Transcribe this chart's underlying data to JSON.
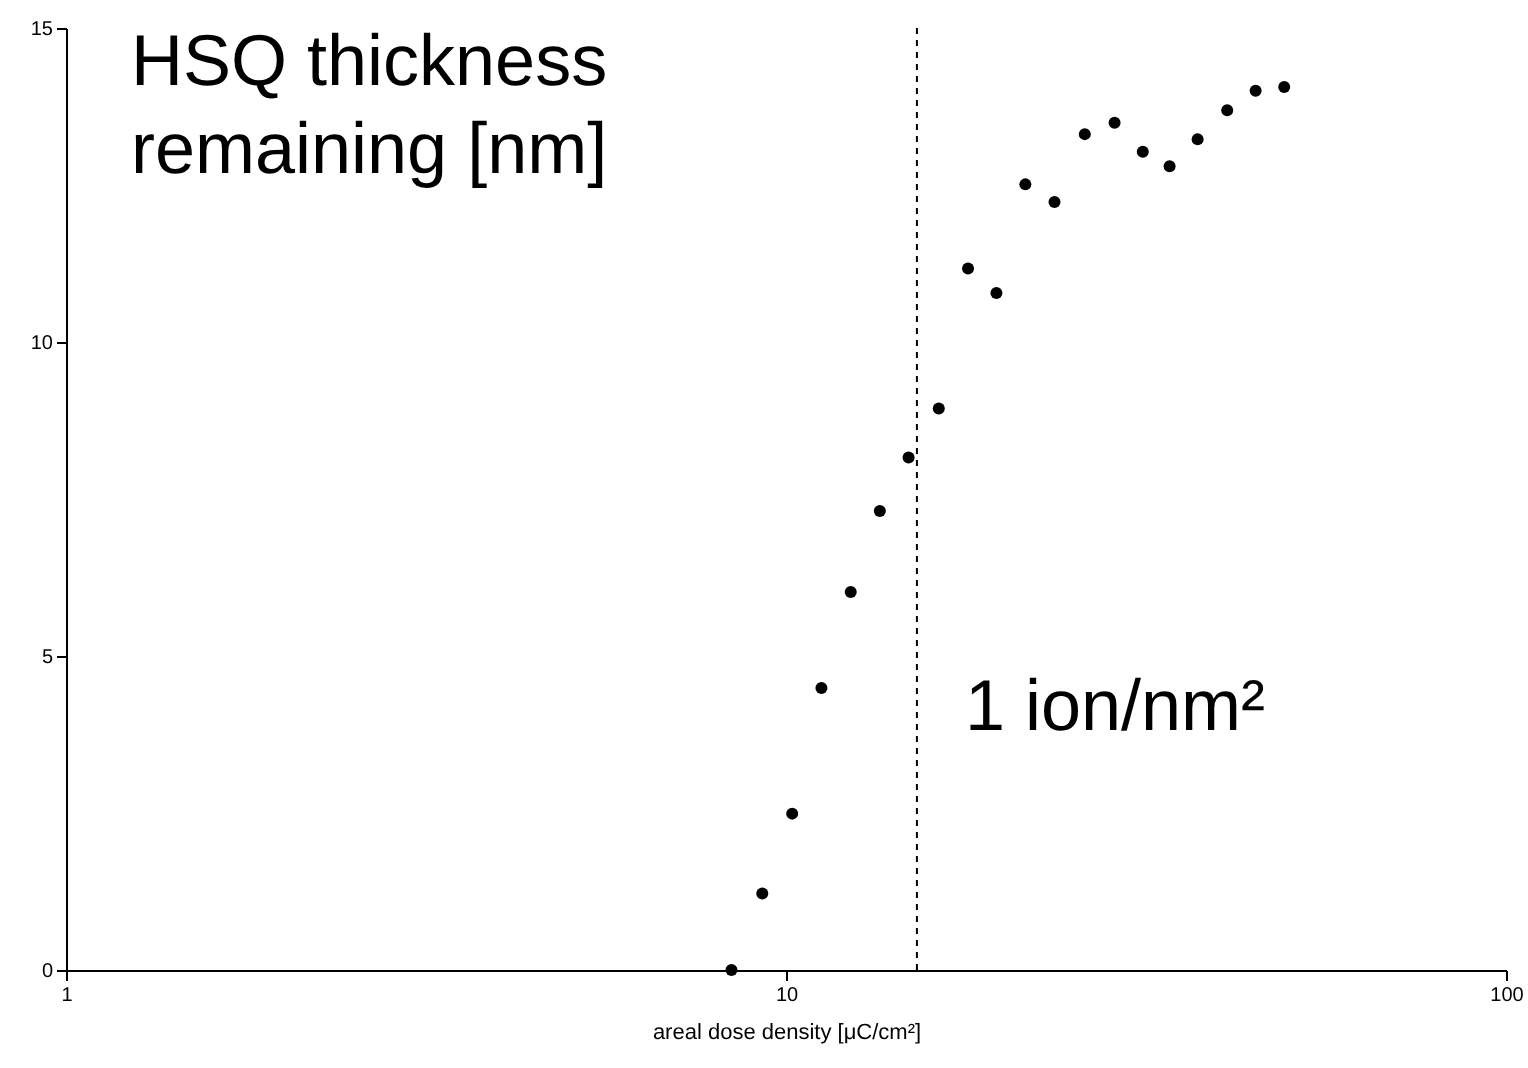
{
  "chart_data": {
    "type": "scatter",
    "ylabel": "HSQ thickness\nremaining [nm]",
    "xlabel": "areal dose density [μC/cm²]",
    "x": [
      8.4,
      9.27,
      10.2,
      11.2,
      12.3,
      13.5,
      14.8,
      16.3,
      17.9,
      19.6,
      21.5,
      23.6,
      26.0,
      28.6,
      31.3,
      34.1,
      37.3,
      41.0,
      44.9,
      49.2
    ],
    "series": [
      {
        "color": "#000000",
        "values": [
          0,
          1.22,
          2.49,
          4.49,
          6.02,
          7.31,
          8.16,
          8.94,
          11.17,
          10.78,
          12.51,
          12.23,
          13.31,
          13.49,
          13.03,
          12.8,
          13.23,
          13.69,
          14.0,
          14.06
        ]
      }
    ],
    "log": "x",
    "xlim": [
      1,
      100
    ],
    "xticks": [
      1,
      10,
      100
    ],
    "ylim": [
      0,
      15
    ],
    "yticks": [
      0,
      5,
      10,
      15
    ],
    "marker": "circle",
    "grid": false,
    "ref_lines": [
      {
        "axis": "x",
        "value": 15.2,
        "label": "1 ion/nm²",
        "line_style": "dashed",
        "color": "#000000"
      }
    ]
  }
}
